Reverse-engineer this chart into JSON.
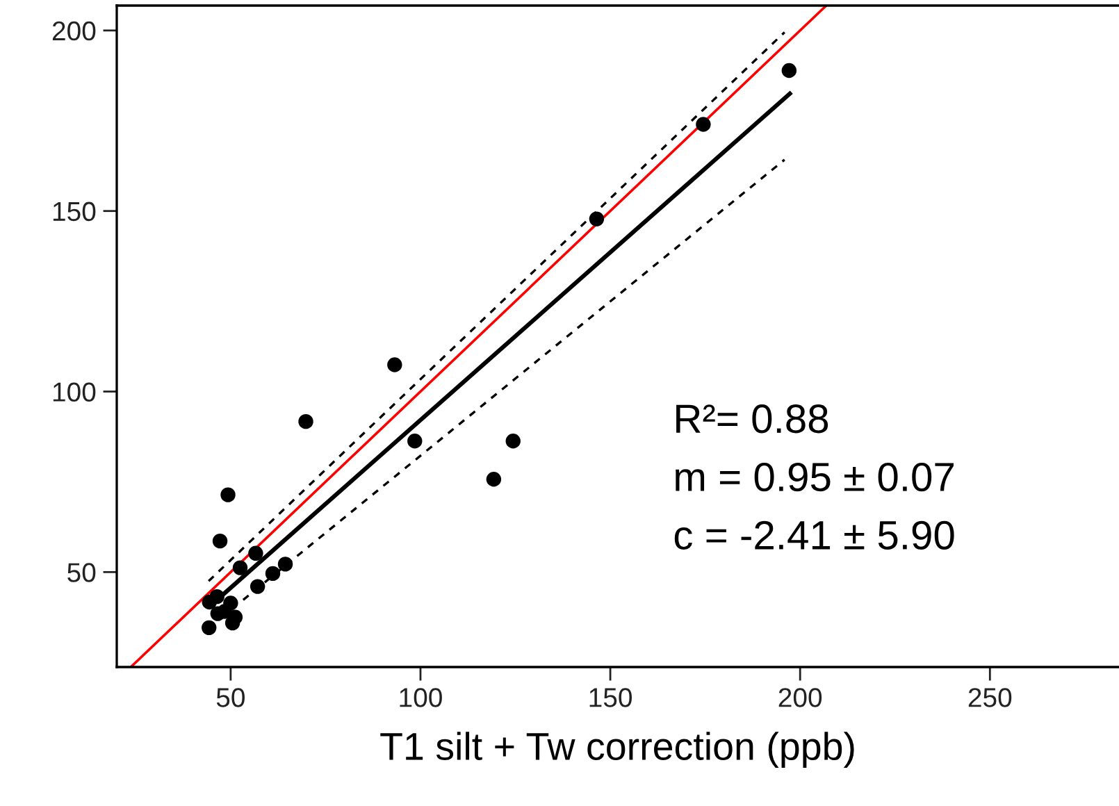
{
  "chart_data": {
    "type": "scatter",
    "xlabel": "T1 silt + Tw correction (ppb)",
    "annotations": [
      "R²= 0.88",
      "m = 0.95 ± 0.07",
      "c = -2.41 ± 5.90"
    ],
    "xlim": [
      20,
      284
    ],
    "ylim": [
      23.7,
      206.9
    ],
    "xticks": [
      50,
      100,
      150,
      200,
      250
    ],
    "yticks": [
      50,
      100,
      150,
      200
    ],
    "grid": false,
    "legend": false,
    "series": [
      {
        "color": "#000000",
        "marker": "circle",
        "x": [
          197.1,
          174.5,
          146.4,
          93.2,
          69.8,
          98.5,
          124.4,
          119.3,
          49.3,
          47.2,
          56.6,
          52.5,
          64.4,
          61.1,
          57.1,
          44.4,
          46.4,
          50.0,
          46.6,
          48.4,
          51.2,
          50.5,
          44.3
        ],
        "values": [
          188.9,
          174.0,
          147.8,
          107.4,
          91.7,
          86.3,
          86.3,
          75.7,
          71.4,
          58.6,
          55.2,
          51.2,
          52.2,
          49.6,
          46.0,
          41.7,
          43.2,
          41.4,
          38.5,
          39.1,
          37.5,
          35.9,
          34.6
        ]
      },
      {
        "type": "line",
        "color": "#ff0000",
        "line_style": "solid",
        "x": [
          23.7,
          206.9
        ],
        "values": [
          23.7,
          206.9
        ]
      },
      {
        "type": "line",
        "color": "#000000",
        "line_style": "solid",
        "x": [
          47.8,
          197.3
        ],
        "values": [
          43.6,
          182.5
        ]
      },
      {
        "type": "line",
        "color": "#000000",
        "line_style": "dashed",
        "x": [
          44.2,
          195.9
        ],
        "values": [
          47.5,
          199.5
        ]
      },
      {
        "type": "line",
        "color": "#000000",
        "line_style": "dashed",
        "x": [
          53.3,
          195.9
        ],
        "values": [
          42.3,
          164.2
        ]
      }
    ]
  }
}
